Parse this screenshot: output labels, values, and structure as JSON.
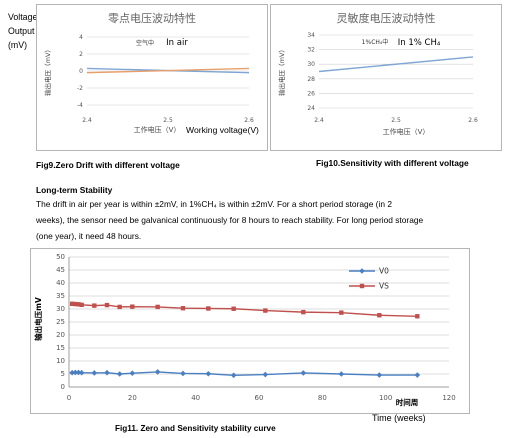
{
  "chart_data": [
    {
      "type": "line",
      "title": "零点电压波动特性",
      "xlabel": "工作电压（V）",
      "xlabel_extra": "Working voltage(V)",
      "ylabel": "输出电压（mV）",
      "outer_ylabel": [
        "Voltage",
        "Output",
        "(mV)"
      ],
      "annotation_cn": "空气中",
      "annotation_en": "In air",
      "x_ticks": [
        "2.4",
        "2.5",
        "2.6"
      ],
      "y_ticks": [
        "4",
        "2",
        "0",
        "-2",
        "-4"
      ],
      "xlim": [
        2.4,
        2.6
      ],
      "ylim": [
        -4,
        4
      ],
      "series": [
        {
          "x": [
            2.4,
            2.6
          ],
          "values": [
            0.3,
            -0.2
          ],
          "color": "#7fa6d4"
        },
        {
          "x": [
            2.4,
            2.6
          ],
          "values": [
            -0.2,
            0.3
          ],
          "color": "#e8a06a"
        }
      ]
    },
    {
      "type": "line",
      "title": "灵敏度电压波动特性",
      "xlabel": "工作电压（V）",
      "ylabel": "输出电压（mV）",
      "annotation_cn": "1%CH₄中",
      "annotation_en": "In 1% CH₄",
      "x_ticks": [
        "2.4",
        "2.5",
        "2.6"
      ],
      "y_ticks": [
        "34",
        "32",
        "30",
        "28",
        "26",
        "24"
      ],
      "xlim": [
        2.4,
        2.6
      ],
      "ylim": [
        24,
        34
      ],
      "series": [
        {
          "x": [
            2.4,
            2.6
          ],
          "values": [
            29.0,
            31.0
          ],
          "color": "#7fa6d4"
        }
      ]
    },
    {
      "type": "line",
      "title": "",
      "xlabel": "Time (weeks)",
      "xlabel_cn": "时间周",
      "ylabel": "输出电压mV",
      "x_ticks": [
        "0",
        "20",
        "40",
        "60",
        "80",
        "100",
        "120"
      ],
      "y_ticks": [
        "50",
        "45",
        "40",
        "35",
        "30",
        "25",
        "20",
        "15",
        "10",
        "5",
        "0"
      ],
      "xlim": [
        0,
        120
      ],
      "ylim": [
        0,
        50
      ],
      "legend": "top-right",
      "series": [
        {
          "name": "V0",
          "color": "#4a7fc1",
          "marker": "diamond",
          "x": [
            1,
            2,
            3,
            4,
            8,
            12,
            16,
            20,
            28,
            36,
            44,
            52,
            62,
            74,
            86,
            98,
            110
          ],
          "values": [
            5.5,
            5.6,
            5.6,
            5.5,
            5.4,
            5.5,
            5.0,
            5.3,
            5.8,
            5.2,
            5.1,
            4.5,
            4.8,
            5.4,
            5.0,
            4.6,
            4.6
          ]
        },
        {
          "name": "VS",
          "color": "#c0504d",
          "marker": "square",
          "x": [
            1,
            2,
            3,
            4,
            8,
            12,
            16,
            20,
            28,
            36,
            44,
            52,
            62,
            74,
            86,
            98,
            110
          ],
          "values": [
            32.0,
            31.9,
            31.8,
            31.6,
            31.3,
            31.5,
            30.8,
            30.9,
            30.8,
            30.3,
            30.2,
            30.1,
            29.4,
            28.8,
            28.6,
            27.6,
            27.2
          ]
        }
      ]
    }
  ],
  "captions": {
    "fig9": "Fig9.Zero Drift with different voltage",
    "fig10": "Fig10.Sensitivity with different voltage",
    "fig11": "Fig11. Zero and Sensitivity stability curve"
  },
  "section": {
    "heading": "Long-term Stability",
    "lines": [
      "The drift in air per year is within ±2mV, in 1%CH₄ is within ±2mV. For a short period storage  (in  2",
      "weeks), the  sensor need be galvanical continuously for 8 hours to reach stability. For long period storage",
      "(one  year), it need 48 hours."
    ]
  }
}
